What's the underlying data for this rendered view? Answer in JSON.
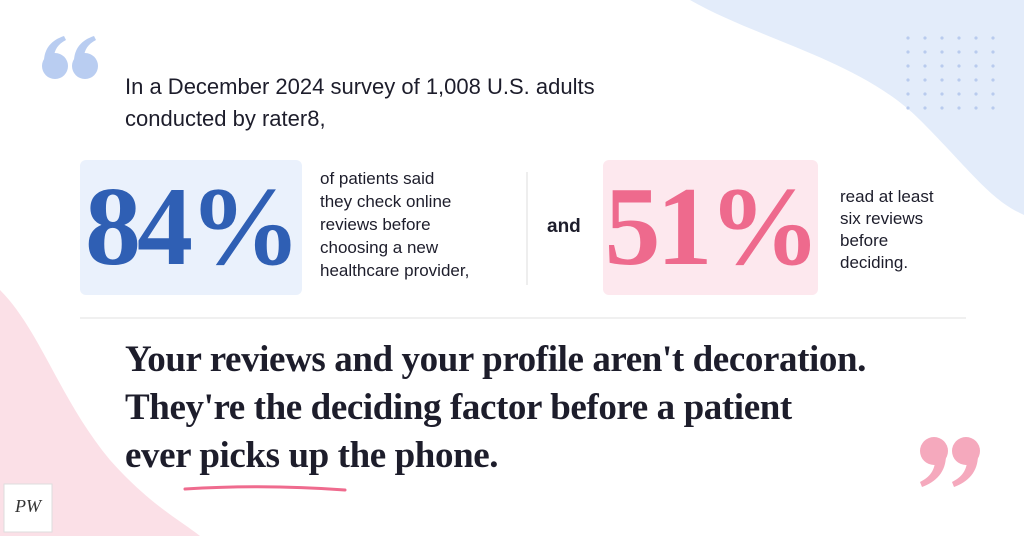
{
  "intro": {
    "lines": [
      "In a December 2024 survey of 1,008 U.S. adults",
      "conducted by rater8,"
    ]
  },
  "stats": [
    {
      "value": "84%",
      "description": [
        "of patients said",
        "they check online",
        "reviews before",
        "choosing a new",
        "healthcare provider,"
      ]
    },
    {
      "value": "51%",
      "description": [
        "read at least",
        "six reviews",
        "before",
        "deciding."
      ]
    }
  ],
  "connector": "and",
  "headline": {
    "lines": [
      "Your reviews and your profile aren't decoration.",
      "They're the deciding factor before a patient",
      "ever picks up the phone."
    ]
  },
  "logo": "PW"
}
